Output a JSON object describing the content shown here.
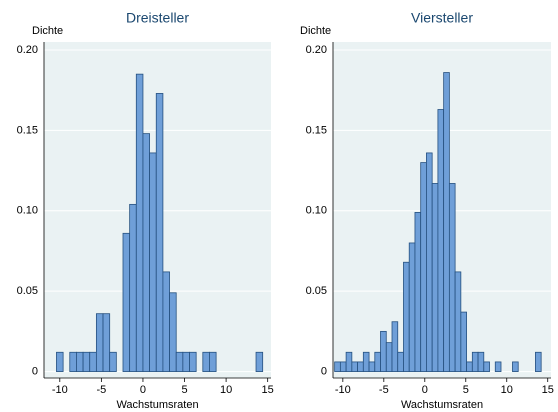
{
  "chart_data": [
    {
      "type": "histogram",
      "title": "Dreisteller",
      "y_label": "Dichte",
      "x_label": "Wachstumsraten",
      "color": "#6f9fd8",
      "edge_color": "#25507f",
      "background": "#eaf2f3",
      "grid": true,
      "bins": [
        -10.4,
        -9.6,
        -8.8,
        -8,
        -7.2,
        -6.4,
        -5.6,
        -4.8,
        -4,
        -3.2,
        -2.4,
        -1.6,
        -0.8,
        0,
        0.8,
        1.6,
        2.4,
        3.2,
        4,
        4.8,
        5.6,
        6.4,
        7.2,
        8,
        8.8,
        9.6,
        10.4,
        11.2,
        12,
        12.8,
        13.6,
        14.4
      ],
      "values": [
        0.012,
        0,
        0.012,
        0.012,
        0.012,
        0.012,
        0.036,
        0.036,
        0.012,
        0,
        0.086,
        0.104,
        0.185,
        0.148,
        0.136,
        0.173,
        0.062,
        0.049,
        0.012,
        0.012,
        0.012,
        0,
        0.012,
        0.012,
        0,
        0,
        0,
        0,
        0,
        0,
        0.012
      ],
      "xlim": [
        -11.9,
        15.4
      ],
      "xticks": [
        -10,
        -5,
        0,
        5,
        10,
        15
      ],
      "ylim": [
        -0.004,
        0.205
      ],
      "yticks": [
        0,
        0.05,
        {
          "value": 0.1,
          "label": "0.10"
        },
        0.15,
        {
          "value": 0.2,
          "label": "0.20"
        }
      ]
    },
    {
      "type": "histogram",
      "title": "Viersteller",
      "y_label": "Dichte",
      "x_label": "Wachstumsraten",
      "color": "#6f9fd8",
      "edge_color": "#25507f",
      "background": "#eaf2f3",
      "grid": true,
      "bins": [
        -11,
        -10.3,
        -9.6,
        -8.9,
        -8.2,
        -7.5,
        -6.8,
        -6.1,
        -5.4,
        -4.7,
        -4,
        -3.3,
        -2.6,
        -1.9,
        -1.2,
        -0.5,
        0.2,
        0.9,
        1.6,
        2.3,
        3,
        3.7,
        4.4,
        5.1,
        5.8,
        6.5,
        7.2,
        7.9,
        8.6,
        9.3,
        10,
        10.7,
        11.4,
        12.1,
        12.8,
        13.5,
        14.2
      ],
      "values": [
        0.006,
        0.006,
        0.012,
        0.006,
        0.006,
        0.012,
        0.006,
        0.012,
        0.025,
        0.018,
        0.031,
        0.012,
        0.068,
        0.08,
        0.099,
        0.13,
        0.136,
        0.117,
        0.163,
        0.186,
        0.117,
        0.062,
        0.037,
        0.006,
        0.012,
        0.012,
        0.006,
        0,
        0.006,
        0,
        0,
        0.006,
        0,
        0,
        0,
        0.012
      ],
      "xlim": [
        -11.2,
        15.4
      ],
      "xticks": [
        -10,
        -5,
        0,
        5,
        10,
        15
      ],
      "ylim": [
        -0.004,
        0.205
      ],
      "yticks": [
        0,
        0.05,
        {
          "value": 0.1,
          "label": "0.10"
        },
        0.15,
        {
          "value": 0.2,
          "label": "0.20"
        }
      ]
    }
  ]
}
